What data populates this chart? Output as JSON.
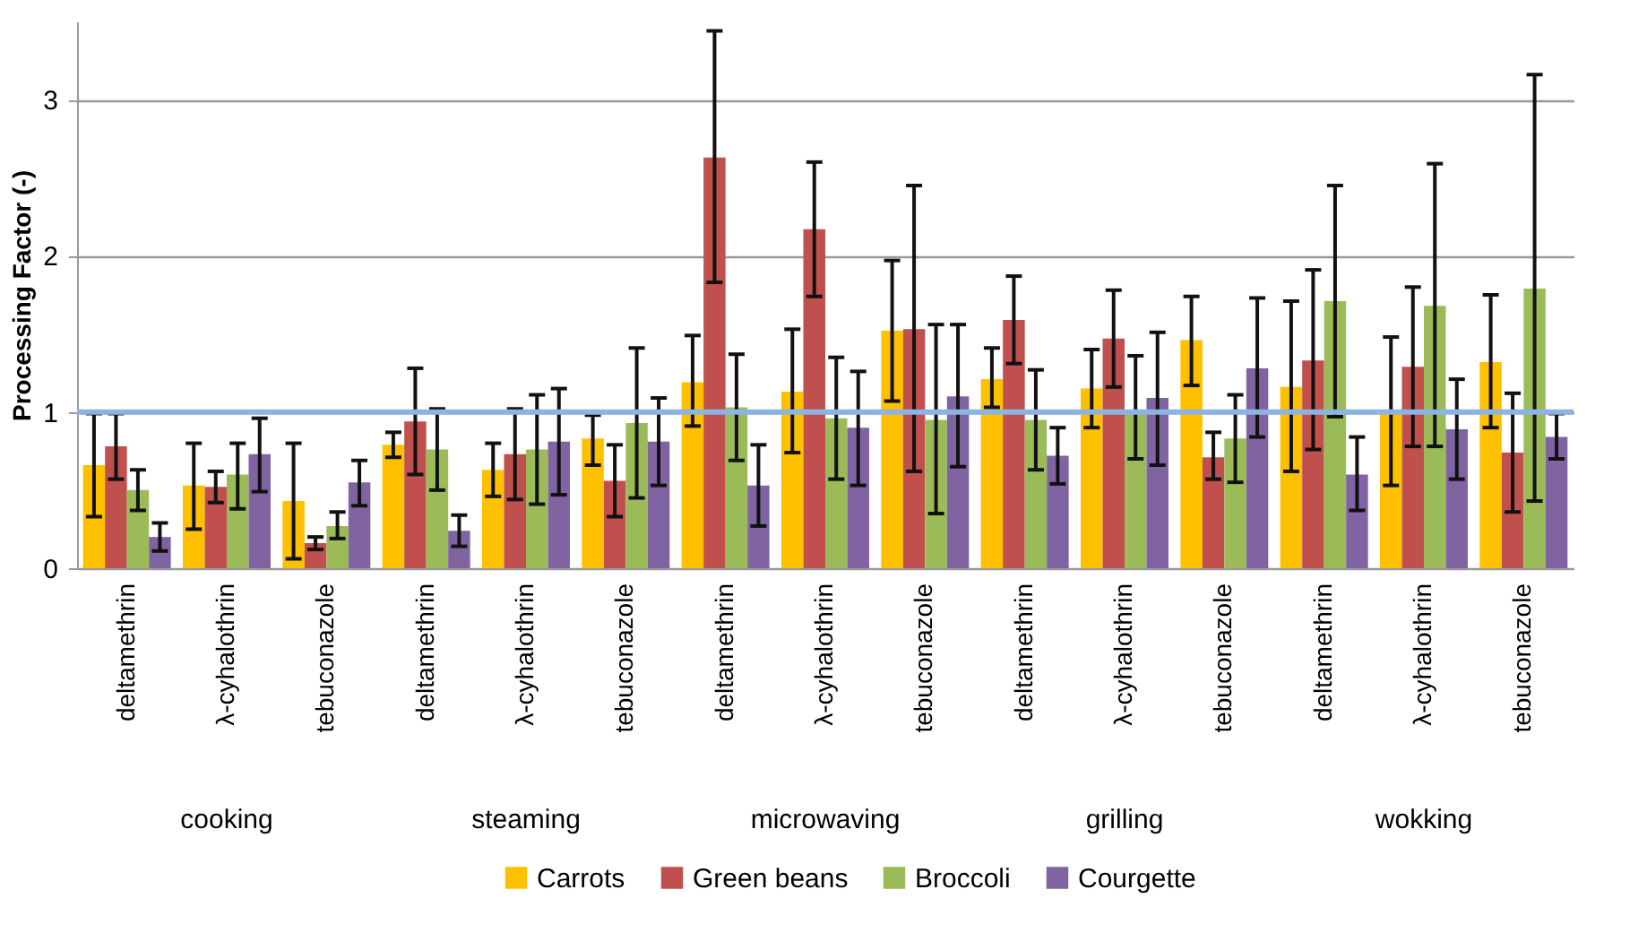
{
  "chart_data": {
    "type": "bar",
    "ylabel": "Processing Factor (-)",
    "categories": [
      "deltamethrin",
      "λ-cyhalothrin",
      "tebuconazole",
      "deltamethrin",
      "λ-cyhalothrin",
      "tebuconazole",
      "deltamethrin",
      "λ-cyhalothrin",
      "tebuconazole",
      "deltamethrin",
      "λ-cyhalothrin",
      "tebuconazole",
      "deltamethrin",
      "λ-cyhalothrin",
      "tebuconazole"
    ],
    "annotations": [
      "cooking",
      "steaming",
      "microwaving",
      "grilling",
      "wokking"
    ],
    "series": [
      {
        "name": "Carrots",
        "color": "#ffc000",
        "values": [
          0.66,
          0.53,
          0.43,
          0.79,
          0.63,
          0.83,
          1.19,
          1.13,
          1.52,
          1.21,
          1.15,
          1.46,
          1.16,
          1.0,
          1.32
        ],
        "errors": [
          [
            0.33,
            0.99
          ],
          [
            0.25,
            0.8
          ],
          [
            0.06,
            0.8
          ],
          [
            0.71,
            0.87
          ],
          [
            0.46,
            0.8
          ],
          [
            0.66,
            0.98
          ],
          [
            0.91,
            1.49
          ],
          [
            0.74,
            1.53
          ],
          [
            1.07,
            1.97
          ],
          [
            1.03,
            1.41
          ],
          [
            0.9,
            1.4
          ],
          [
            1.17,
            1.74
          ],
          [
            0.62,
            1.71
          ],
          [
            0.53,
            1.48
          ],
          [
            0.9,
            1.75
          ]
        ]
      },
      {
        "name": "Green beans",
        "color": "#c0504d",
        "values": [
          0.78,
          0.52,
          0.16,
          0.94,
          0.73,
          0.56,
          2.63,
          2.17,
          1.53,
          1.59,
          1.47,
          0.71,
          1.33,
          1.29,
          0.74
        ],
        "errors": [
          [
            0.57,
            0.99
          ],
          [
            0.42,
            0.62
          ],
          [
            0.12,
            0.2
          ],
          [
            0.6,
            1.28
          ],
          [
            0.44,
            1.02
          ],
          [
            0.33,
            0.79
          ],
          [
            1.83,
            3.44
          ],
          [
            1.74,
            2.6
          ],
          [
            0.62,
            2.45
          ],
          [
            1.31,
            1.87
          ],
          [
            1.16,
            1.78
          ],
          [
            0.57,
            0.87
          ],
          [
            0.76,
            1.91
          ],
          [
            0.78,
            1.8
          ],
          [
            0.36,
            1.12
          ]
        ]
      },
      {
        "name": "Broccoli",
        "color": "#9bbb59",
        "values": [
          0.5,
          0.6,
          0.27,
          0.76,
          0.76,
          0.93,
          1.03,
          0.96,
          0.95,
          0.95,
          1.0,
          0.83,
          1.71,
          1.68,
          1.79
        ],
        "errors": [
          [
            0.37,
            0.63
          ],
          [
            0.38,
            0.8
          ],
          [
            0.19,
            0.36
          ],
          [
            0.5,
            1.02
          ],
          [
            0.41,
            1.11
          ],
          [
            0.45,
            1.41
          ],
          [
            0.69,
            1.37
          ],
          [
            0.57,
            1.35
          ],
          [
            0.35,
            1.56
          ],
          [
            0.63,
            1.27
          ],
          [
            0.7,
            1.36
          ],
          [
            0.55,
            1.11
          ],
          [
            0.97,
            2.45
          ],
          [
            0.78,
            2.59
          ],
          [
            0.43,
            3.16
          ]
        ]
      },
      {
        "name": "Courgette",
        "color": "#8064a2",
        "values": [
          0.2,
          0.73,
          0.55,
          0.24,
          0.81,
          0.81,
          0.53,
          0.9,
          1.1,
          0.72,
          1.09,
          1.28,
          0.6,
          0.89,
          0.84
        ],
        "errors": [
          [
            0.11,
            0.29
          ],
          [
            0.49,
            0.96
          ],
          [
            0.4,
            0.69
          ],
          [
            0.14,
            0.34
          ],
          [
            0.47,
            1.15
          ],
          [
            0.53,
            1.09
          ],
          [
            0.27,
            0.79
          ],
          [
            0.53,
            1.26
          ],
          [
            0.65,
            1.56
          ],
          [
            0.54,
            0.9
          ],
          [
            0.66,
            1.51
          ],
          [
            0.84,
            1.73
          ],
          [
            0.37,
            0.84
          ],
          [
            0.57,
            1.21
          ],
          [
            0.7,
            0.99
          ]
        ]
      }
    ],
    "ylim": [
      0,
      3.5
    ],
    "yticks": [
      {
        "value": 0,
        "label": "0"
      },
      {
        "value": 1,
        "label": "1"
      },
      {
        "value": 2,
        "label": "2"
      },
      {
        "value": 3,
        "label": "3"
      }
    ],
    "grid": "y",
    "legend": "bottom",
    "ref_lines": [
      {
        "axis": "y",
        "value": 1,
        "color": "#8db3e2"
      }
    ]
  }
}
